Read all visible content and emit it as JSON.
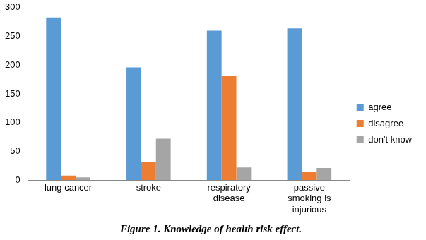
{
  "chart_data": {
    "type": "bar",
    "title": "Figure 1. Knowledge of health risk effect.",
    "categories": [
      "lung cancer",
      "stroke",
      "respiratory disease",
      "passive smoking is injurious"
    ],
    "series": [
      {
        "name": "agree",
        "color": "#5b9bd5",
        "values": [
          283,
          196,
          260,
          264
        ]
      },
      {
        "name": "disagree",
        "color": "#ed7d31",
        "values": [
          8,
          32,
          182,
          14
        ]
      },
      {
        "name": "don't know",
        "color": "#a5a5a5",
        "values": [
          5,
          72,
          22,
          21
        ]
      }
    ],
    "ylim": [
      0,
      300
    ],
    "yticks": [
      0,
      50,
      100,
      150,
      200,
      250,
      300
    ],
    "grid": false,
    "legend": "right"
  }
}
